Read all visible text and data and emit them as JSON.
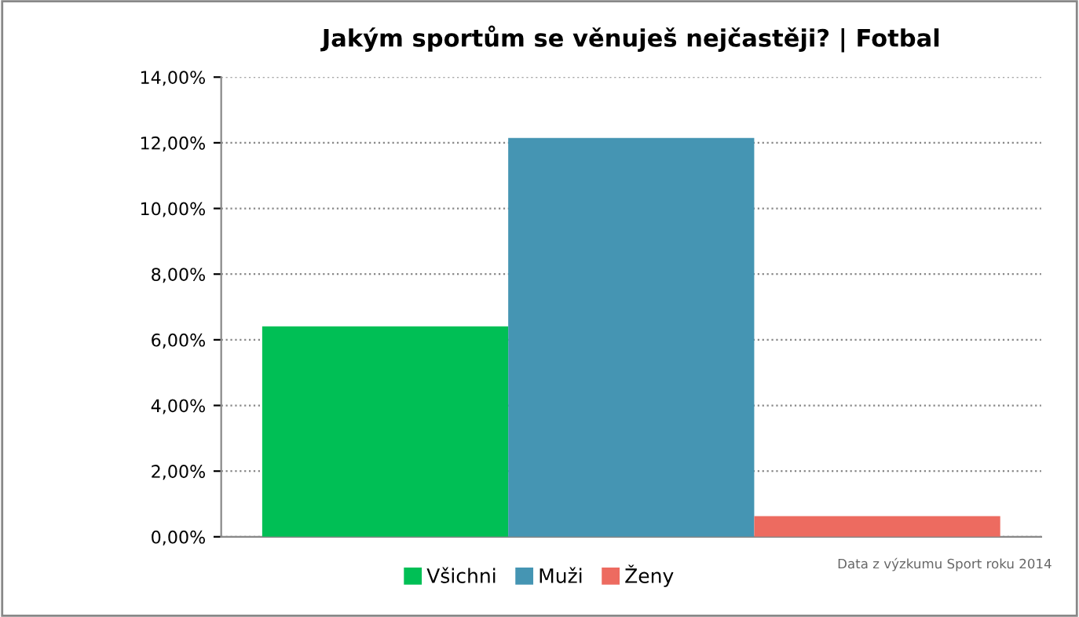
{
  "chart_data": {
    "type": "bar",
    "title": "Jakým sportům se věnuješ nejčastěji? | Fotbal",
    "categories": [
      null
    ],
    "series": [
      {
        "name": "Všichni",
        "color": "#00bf55",
        "values": [
          6.41
        ]
      },
      {
        "name": "Muži",
        "color": "#4595b3",
        "values": [
          12.15
        ]
      },
      {
        "name": "Ženy",
        "color": "#ed6b60",
        "values": [
          0.63
        ]
      }
    ],
    "ylim": [
      0,
      14
    ],
    "yticks": [
      {
        "value": 0,
        "label": "0,00%"
      },
      {
        "value": 2,
        "label": "2,00%"
      },
      {
        "value": 4,
        "label": "4,00%"
      },
      {
        "value": 6,
        "label": "6,00%"
      },
      {
        "value": 8,
        "label": "8,00%"
      },
      {
        "value": 10,
        "label": "10,00%"
      },
      {
        "value": 12,
        "label": "12,00%"
      },
      {
        "value": 14,
        "label": "14,00%"
      }
    ],
    "grid": "y",
    "legend": "bottom",
    "annotations": [
      "Data z výzkumu Sport roku 2014"
    ]
  }
}
